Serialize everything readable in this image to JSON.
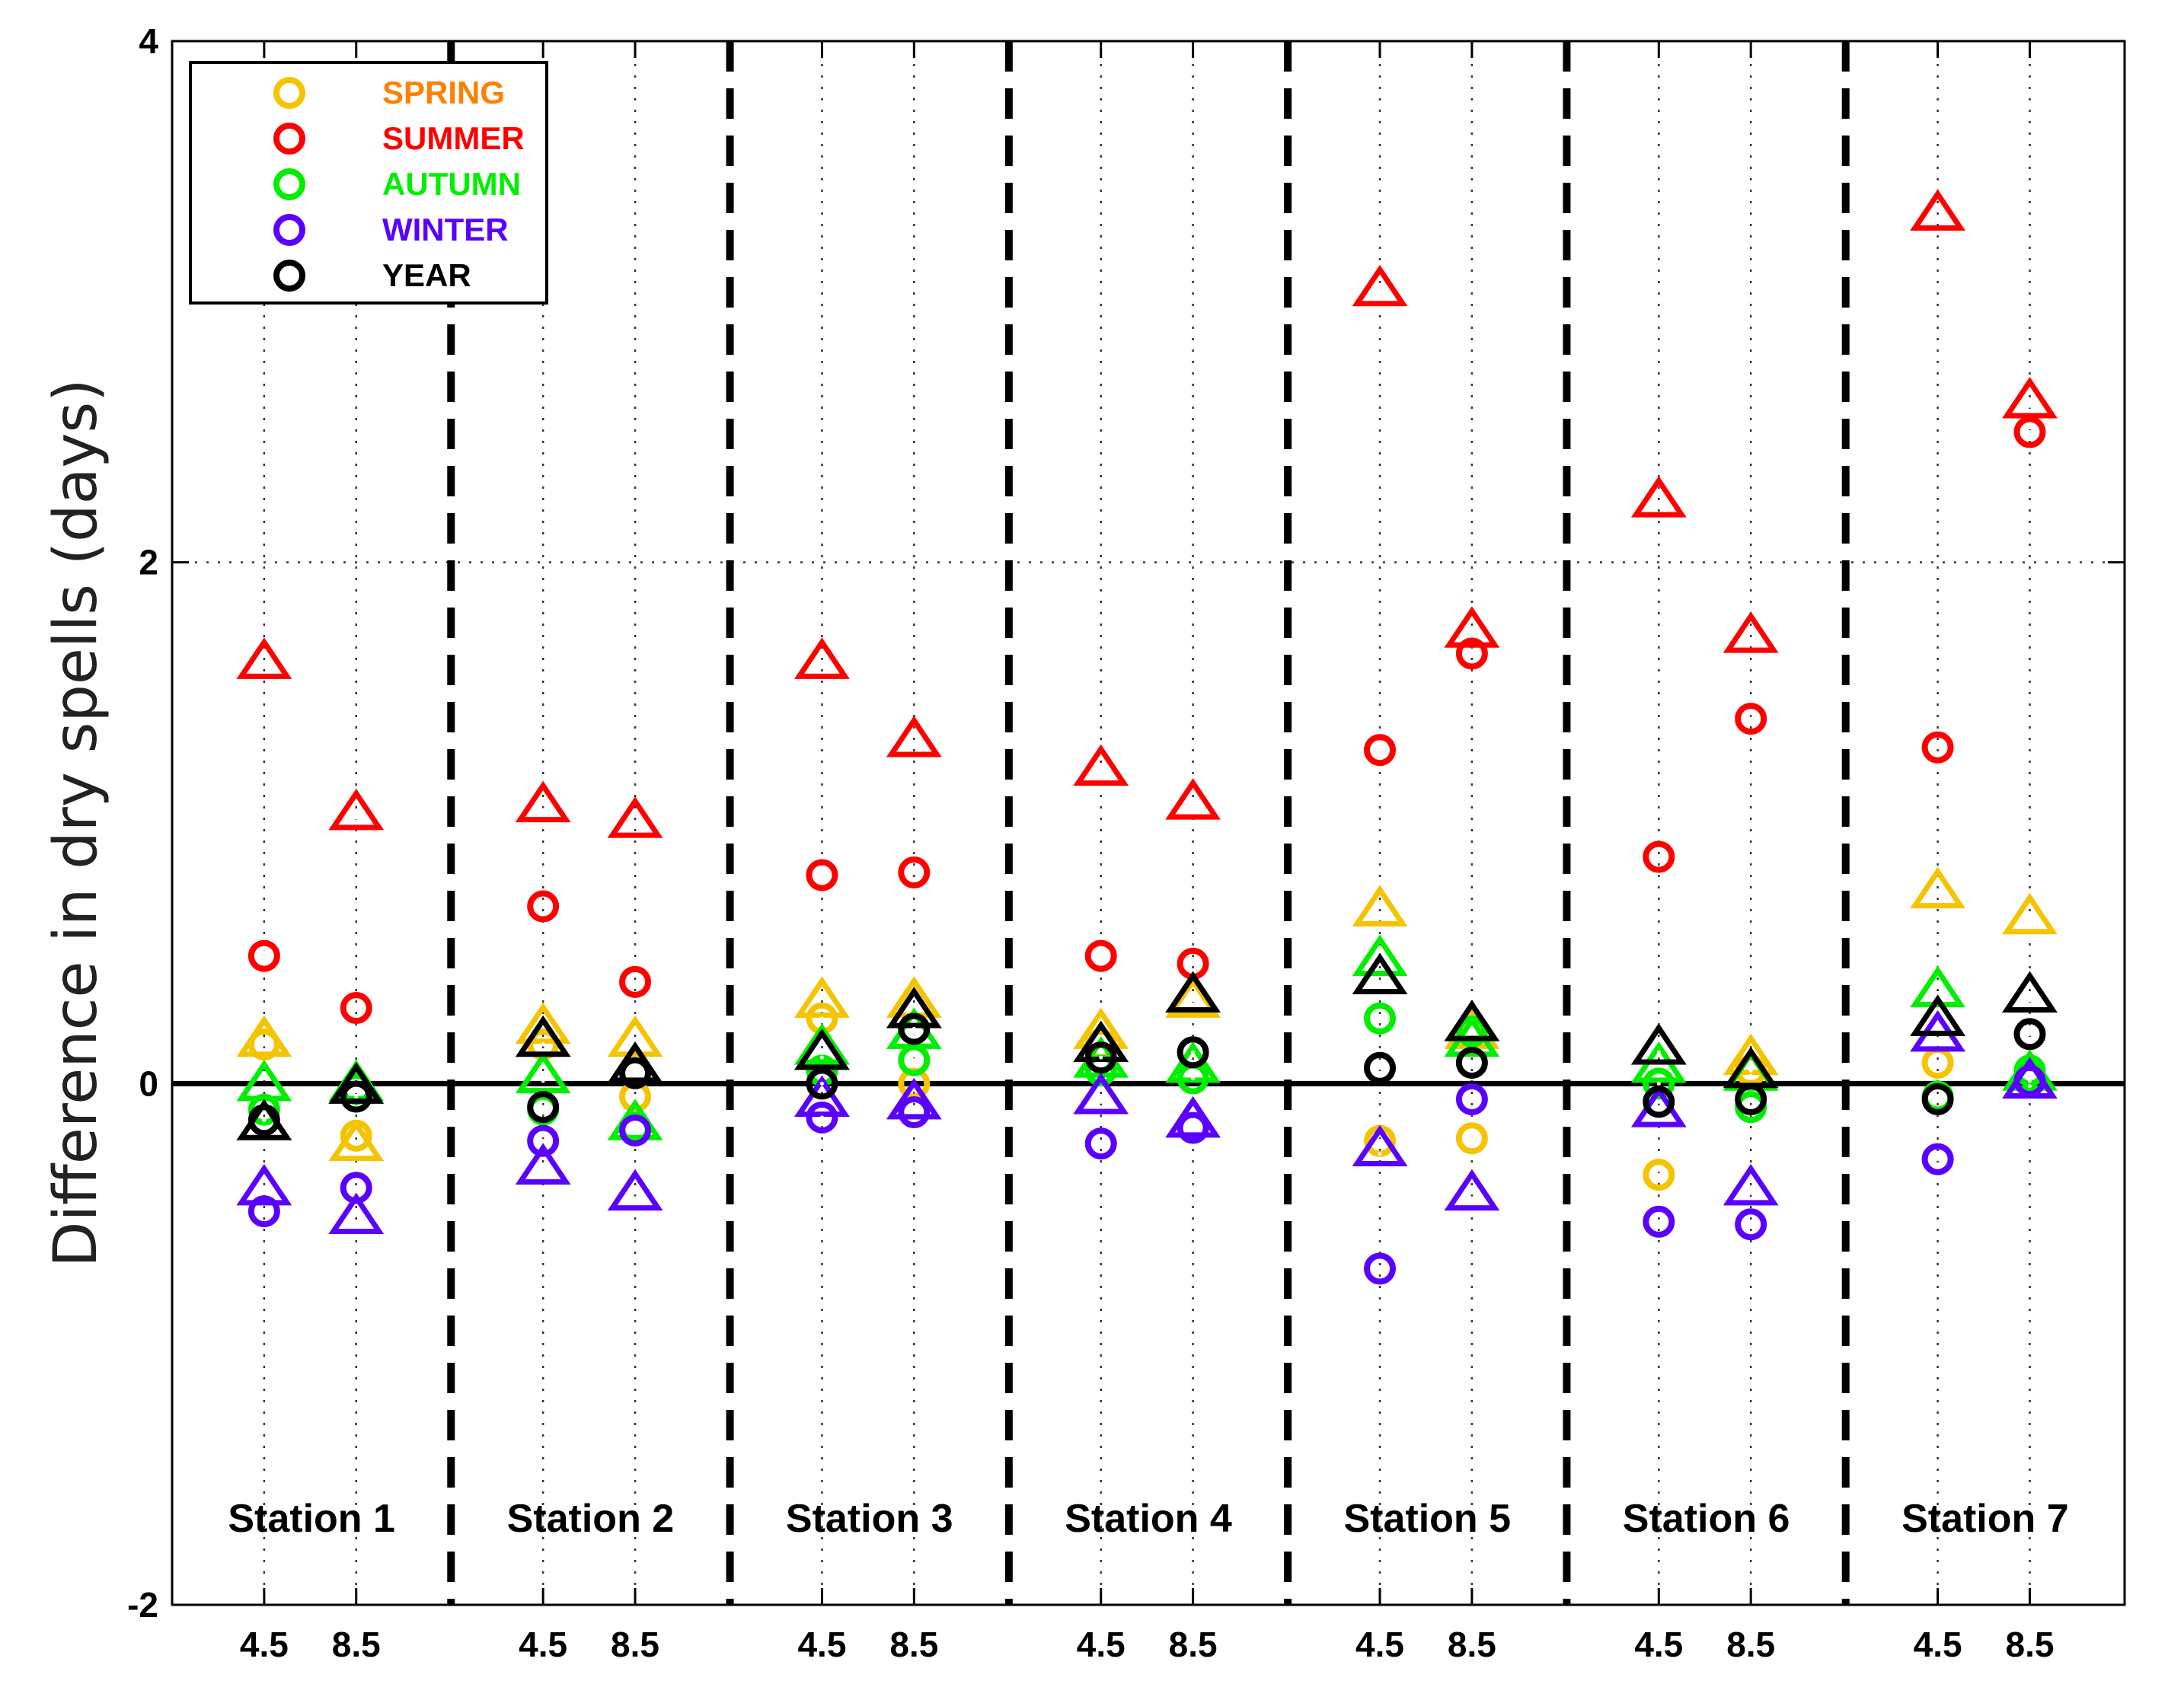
{
  "chart_data": {
    "type": "scatter",
    "title": "",
    "xlabel": "",
    "ylabel": "Difference in dry spells (days)",
    "ylim": [
      -2,
      4
    ],
    "yticks": [
      -2,
      0,
      2,
      4
    ],
    "grid": true,
    "legend_position": "top-left",
    "stations": [
      "Station 1",
      "Station 2",
      "Station 3",
      "Station 4",
      "Station 5",
      "Station 6",
      "Station 7"
    ],
    "scenarios": [
      "4.5",
      "8.5"
    ],
    "marker_meaning": {
      "circle": "circle marker",
      "triangle": "triangle marker"
    },
    "series": [
      {
        "name": "SPRING",
        "color": "#f5c400",
        "label_color": "#ff8000",
        "circle": [
          [
            0.15,
            -0.2
          ],
          [
            0.15,
            -0.05
          ],
          [
            0.25,
            0.0
          ],
          [
            0.15,
            0.12
          ],
          [
            -0.22,
            -0.21
          ],
          [
            -0.35,
            0.05
          ],
          [
            0.08,
            0.05
          ]
        ],
        "triangle": [
          [
            0.15,
            -0.25
          ],
          [
            0.2,
            0.15
          ],
          [
            0.3,
            0.3
          ],
          [
            0.18,
            0.3
          ],
          [
            0.65,
            0.18
          ],
          [
            0.12,
            0.08
          ],
          [
            0.72,
            0.62
          ]
        ]
      },
      {
        "name": "SUMMER",
        "color": "#ff0000",
        "label_color": "#ff0000",
        "circle": [
          [
            0.49,
            0.29
          ],
          [
            0.68,
            0.39
          ],
          [
            0.8,
            0.81
          ],
          [
            0.49,
            0.46
          ],
          [
            1.28,
            1.65
          ],
          [
            0.87,
            1.4
          ],
          [
            1.29,
            2.5
          ]
        ],
        "triangle": [
          [
            1.6,
            1.02
          ],
          [
            1.05,
            0.99
          ],
          [
            1.6,
            1.3
          ],
          [
            1.19,
            1.06
          ],
          [
            3.03,
            1.72
          ],
          [
            2.22,
            1.7
          ],
          [
            3.32,
            2.6
          ]
        ]
      },
      {
        "name": "AUTUMN",
        "color": "#00ee00",
        "label_color": "#00ee00",
        "circle": [
          [
            -0.1,
            -0.02
          ],
          [
            -0.1,
            -0.17
          ],
          [
            0.05,
            0.09
          ],
          [
            0.05,
            0.02
          ],
          [
            0.25,
            0.2
          ],
          [
            0.0,
            -0.09
          ],
          [
            -0.05,
            0.05
          ]
        ],
        "triangle": [
          [
            -0.02,
            -0.02
          ],
          [
            0.01,
            -0.17
          ],
          [
            0.12,
            0.18
          ],
          [
            0.07,
            0.05
          ],
          [
            0.46,
            0.15
          ],
          [
            0.05,
            0.02
          ],
          [
            0.34,
            0.02
          ]
        ]
      },
      {
        "name": "WINTER",
        "color": "#5a00ff",
        "label_color": "#5a00ff",
        "circle": [
          [
            -0.49,
            -0.4
          ],
          [
            -0.22,
            -0.18
          ],
          [
            -0.13,
            -0.11
          ],
          [
            -0.23,
            -0.17
          ],
          [
            -0.71,
            -0.06
          ],
          [
            -0.53,
            -0.54
          ],
          [
            -0.29,
            0.01
          ]
        ],
        "triangle": [
          [
            -0.42,
            -0.53
          ],
          [
            -0.34,
            -0.44
          ],
          [
            -0.08,
            -0.09
          ],
          [
            -0.07,
            -0.16
          ],
          [
            -0.27,
            -0.44
          ],
          [
            -0.12,
            -0.42
          ],
          [
            0.17,
            -0.01
          ]
        ]
      },
      {
        "name": "YEAR",
        "color": "#000000",
        "label_color": "#000000",
        "circle": [
          [
            -0.14,
            -0.05
          ],
          [
            -0.09,
            0.04
          ],
          [
            0.0,
            0.21
          ],
          [
            0.1,
            0.12
          ],
          [
            0.06,
            0.08
          ],
          [
            -0.07,
            -0.06
          ],
          [
            -0.06,
            0.19
          ]
        ],
        "triangle": [
          [
            -0.17,
            -0.03
          ],
          [
            0.15,
            0.05
          ],
          [
            0.1,
            0.26
          ],
          [
            0.13,
            0.32
          ],
          [
            0.39,
            0.21
          ],
          [
            0.12,
            0.03
          ],
          [
            0.23,
            0.32
          ]
        ]
      }
    ]
  }
}
